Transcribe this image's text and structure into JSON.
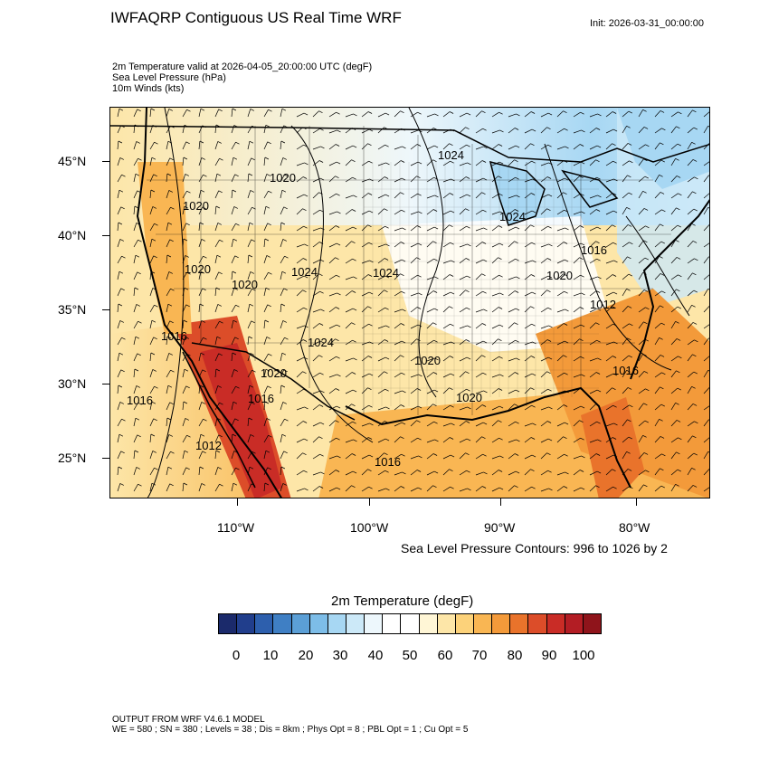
{
  "title": "IWFAQRP Contiguous US Real Time WRF",
  "init": "Init: 2026-03-31_00:00:00",
  "subtitles": [
    "2m Temperature valid at 2026-04-05_20:00:00 UTC   (degF)",
    "Sea Level Pressure   (hPa)",
    "10m Winds   (kts)"
  ],
  "lat_labels": [
    "45°N",
    "40°N",
    "35°N",
    "30°N",
    "25°N"
  ],
  "lon_labels": [
    "110°W",
    "100°W",
    "90°W",
    "80°W"
  ],
  "pressure_labels": [
    "1024",
    "1020",
    "1020",
    "1024",
    "1016",
    "1020",
    "1020",
    "1024",
    "1020",
    "1012",
    "1024",
    "1016",
    "1020",
    "1016",
    "1024",
    "1020",
    "1016",
    "1016",
    "1012",
    "1020",
    "1016"
  ],
  "contour_note": "Sea Level Pressure Contours: 996 to 1026 by 2",
  "colorbar": {
    "title": "2m Temperature  (degF)",
    "labels": [
      "0",
      "10",
      "20",
      "30",
      "40",
      "50",
      "60",
      "70",
      "80",
      "90",
      "100"
    ],
    "colors": [
      "#1b2a6b",
      "#213e8c",
      "#2d5fad",
      "#3f7fc4",
      "#5b9fd6",
      "#7dbde8",
      "#a7d7f3",
      "#cce9f8",
      "#edf7fc",
      "#ffffff",
      "#ffffff",
      "#fff6d6",
      "#fde6a8",
      "#fcd27a",
      "#f9b653",
      "#f39a3a",
      "#e9732b",
      "#dc4d29",
      "#c92c26",
      "#b31d24",
      "#8f141b"
    ]
  },
  "footer": [
    "OUTPUT FROM WRF V4.6.1 MODEL",
    "WE = 580 ; SN = 380 ; Levels = 38 ; Dis = 8km ; Phys Opt = 8 ; PBL Opt = 1 ; Cu Opt = 5"
  ]
}
